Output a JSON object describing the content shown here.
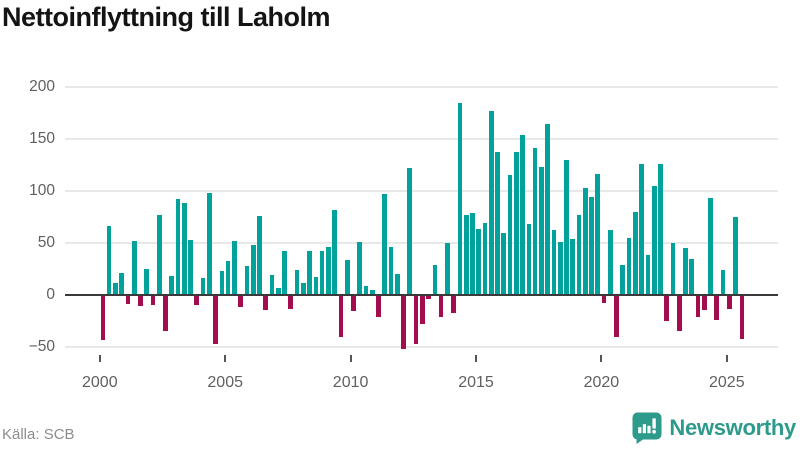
{
  "title": "Nettoinflyttning till Laholm",
  "footer": {
    "source": "Källa: SCB",
    "brand": "Newsworthy"
  },
  "colors": {
    "positive_bar": "#00a29b",
    "negative_bar": "#a30c4d",
    "grid": "#e8e8e8",
    "zero_line": "#3a3a3a",
    "axis_text": "#606060",
    "title_text": "#141414",
    "source_text": "#8d8d8d",
    "brand_teal": "#2e9a8c"
  },
  "chart_data": {
    "type": "bar",
    "title": "Nettoinflyttning till Laholm",
    "xlabel": "",
    "ylabel": "",
    "x_interval": "quarter",
    "x_start": "2000Q1",
    "x_end": "2025Q3",
    "x_tick_labels": [
      "2000",
      "2005",
      "2010",
      "2015",
      "2020",
      "2025"
    ],
    "x_tick_years": [
      2000,
      2005,
      2010,
      2015,
      2020,
      2025
    ],
    "y_ticks": [
      200,
      150,
      100,
      50,
      0,
      -50
    ],
    "y_tick_labels": [
      "200",
      "150",
      "100",
      "50",
      "0",
      "−50"
    ],
    "ylim": [
      -62,
      210
    ],
    "grid": "horizontal",
    "legend": "none",
    "categories": [
      "2000Q1",
      "2000Q2",
      "2000Q3",
      "2000Q4",
      "2001Q1",
      "2001Q2",
      "2001Q3",
      "2001Q4",
      "2002Q1",
      "2002Q2",
      "2002Q3",
      "2002Q4",
      "2003Q1",
      "2003Q2",
      "2003Q3",
      "2003Q4",
      "2004Q1",
      "2004Q2",
      "2004Q3",
      "2004Q4",
      "2005Q1",
      "2005Q2",
      "2005Q3",
      "2005Q4",
      "2006Q1",
      "2006Q2",
      "2006Q3",
      "2006Q4",
      "2007Q1",
      "2007Q2",
      "2007Q3",
      "2007Q4",
      "2008Q1",
      "2008Q2",
      "2008Q3",
      "2008Q4",
      "2009Q1",
      "2009Q2",
      "2009Q3",
      "2009Q4",
      "2010Q1",
      "2010Q2",
      "2010Q3",
      "2010Q4",
      "2011Q1",
      "2011Q2",
      "2011Q3",
      "2011Q4",
      "2012Q1",
      "2012Q2",
      "2012Q3",
      "2012Q4",
      "2013Q1",
      "2013Q2",
      "2013Q3",
      "2013Q4",
      "2014Q1",
      "2014Q2",
      "2014Q3",
      "2014Q4",
      "2015Q1",
      "2015Q2",
      "2015Q3",
      "2015Q4",
      "2016Q1",
      "2016Q2",
      "2016Q3",
      "2016Q4",
      "2017Q1",
      "2017Q2",
      "2017Q3",
      "2017Q4",
      "2018Q1",
      "2018Q2",
      "2018Q3",
      "2018Q4",
      "2019Q1",
      "2019Q2",
      "2019Q3",
      "2019Q4",
      "2020Q1",
      "2020Q2",
      "2020Q3",
      "2020Q4",
      "2021Q1",
      "2021Q2",
      "2021Q3",
      "2021Q4",
      "2022Q1",
      "2022Q2",
      "2022Q3",
      "2022Q4",
      "2023Q1",
      "2023Q2",
      "2023Q3",
      "2023Q4",
      "2024Q1",
      "2024Q2",
      "2024Q3",
      "2024Q4",
      "2025Q1",
      "2025Q2",
      "2025Q3"
    ],
    "values": [
      -43,
      66,
      12,
      21,
      -9,
      52,
      -11,
      25,
      -10,
      77,
      -35,
      18,
      92,
      88,
      53,
      -10,
      16,
      98,
      -47,
      23,
      33,
      52,
      -12,
      28,
      48,
      76,
      -14,
      19,
      7,
      42,
      -13,
      24,
      12,
      42,
      17,
      42,
      46,
      82,
      -40,
      34,
      -15,
      51,
      9,
      5,
      -21,
      97,
      46,
      20,
      -52,
      122,
      -47,
      -28,
      -4,
      29,
      -21,
      50,
      -17,
      184,
      77,
      79,
      63,
      69,
      177,
      137,
      60,
      115,
      137,
      154,
      68,
      141,
      123,
      164,
      62,
      51,
      130,
      54,
      77,
      103,
      94,
      116,
      -8,
      62,
      -40,
      29,
      55,
      80,
      126,
      38,
      105,
      126,
      -25,
      50,
      -35,
      45,
      35,
      -21,
      -14,
      93,
      -24,
      24,
      -13,
      75,
      -42
    ]
  }
}
